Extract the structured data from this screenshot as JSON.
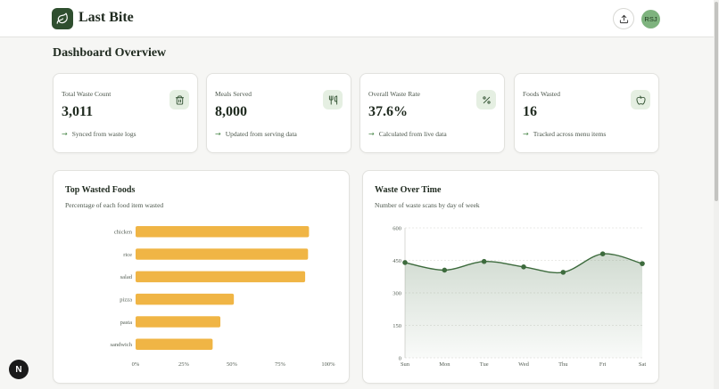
{
  "app": {
    "name": "Last Bite",
    "user_initials": "RSJ"
  },
  "page": {
    "title": "Dashboard Overview"
  },
  "stats": [
    {
      "label": "Total Waste Count",
      "value": "3,011",
      "note": "Synced from waste logs",
      "icon": "trash-icon"
    },
    {
      "label": "Meals Served",
      "value": "8,000",
      "note": "Updated from serving data",
      "icon": "utensils-icon"
    },
    {
      "label": "Overall Waste Rate",
      "value": "37.6%",
      "note": "Calculated from live data",
      "icon": "percent-icon"
    },
    {
      "label": "Foods Wasted",
      "value": "16",
      "note": "Tracked across menu items",
      "icon": "apple-icon"
    }
  ],
  "colors": {
    "brand": "#2f4f2f",
    "bar": "#f0b545",
    "line": "#3d6b3d",
    "avatar": "#7eb37e"
  },
  "chart_data": [
    {
      "type": "bar",
      "orientation": "horizontal",
      "title": "Top Wasted Foods",
      "subtitle": "Percentage of each food item wasted",
      "categories": [
        "chicken",
        "rice",
        "salad",
        "pizza",
        "pasta",
        "sandwich"
      ],
      "values": [
        90,
        89.5,
        88,
        51,
        44,
        40
      ],
      "xticks": [
        "0%",
        "25%",
        "50%",
        "75%",
        "100%"
      ],
      "xlim": [
        0,
        100
      ],
      "grid": false
    },
    {
      "type": "area",
      "title": "Waste Over Time",
      "subtitle": "Number of waste scans by day of week",
      "x": [
        "Sun",
        "Mon",
        "Tue",
        "Wed",
        "Thu",
        "Fri",
        "Sat"
      ],
      "values": [
        440,
        405,
        445,
        420,
        395,
        480,
        435
      ],
      "yticks": [
        "0",
        "150",
        "300",
        "450",
        "600"
      ],
      "ylim": [
        0,
        600
      ],
      "grid": true
    }
  ]
}
